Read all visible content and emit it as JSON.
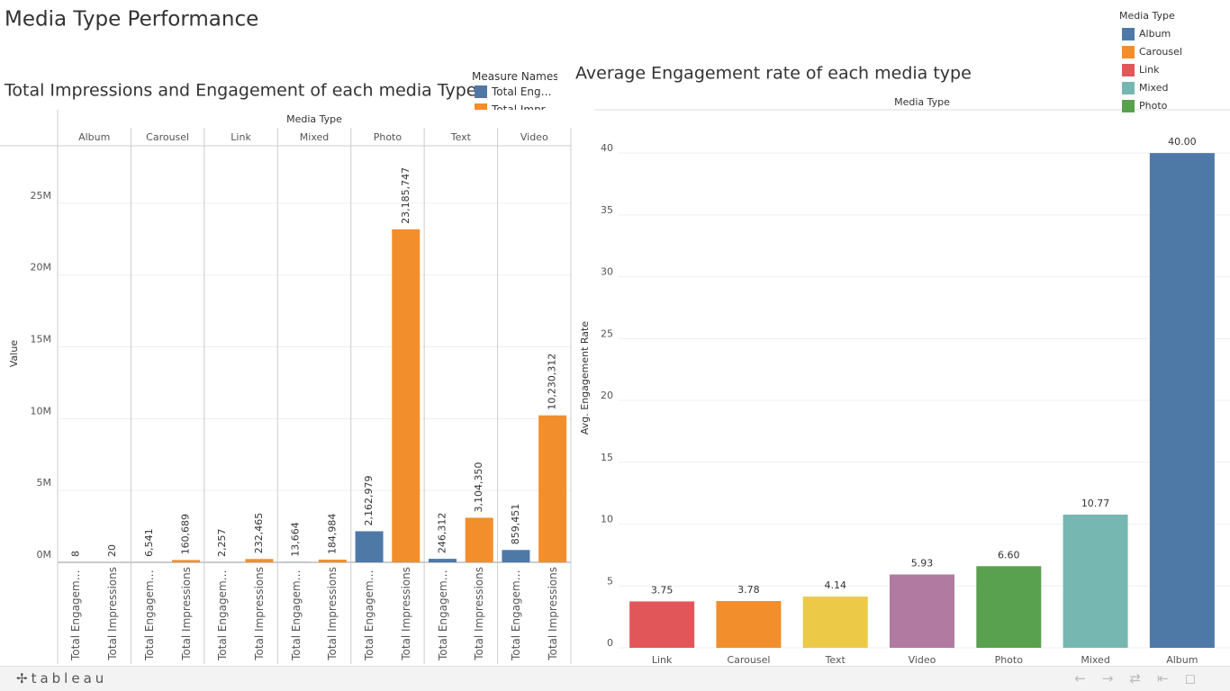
{
  "dashboard": {
    "title": "Media Type Performance"
  },
  "chart_data": [
    {
      "type": "paned_bar",
      "title": "Total Impressions and Engagement of each media Type",
      "column_header": "Media Type",
      "categories": [
        "Album",
        "Carousel",
        "Link",
        "Mixed",
        "Photo",
        "Text",
        "Video"
      ],
      "series": [
        {
          "name": "Total Engagement",
          "color": "#4e79a7",
          "values": [
            8,
            6541,
            2257,
            13664,
            2162979,
            246312,
            859451
          ],
          "value_labels": [
            "8",
            "6,541",
            "2,257",
            "13,664",
            "2,162,979",
            "246,312",
            "859,451"
          ]
        },
        {
          "name": "Total Impressions",
          "color": "#f28e2b",
          "values": [
            20,
            160689,
            232465,
            184984,
            23185747,
            3104350,
            10230312
          ],
          "value_labels": [
            "20",
            "160,689",
            "232,465",
            "184,984",
            "23,185,747",
            "3,104,350",
            "10,230,312"
          ]
        }
      ],
      "ylabel": "Value",
      "ylim": [
        0,
        29000000
      ],
      "yticks": [
        {
          "value": 0,
          "label": "0M"
        },
        {
          "value": 5000000,
          "label": "5M"
        },
        {
          "value": 10000000,
          "label": "10M"
        },
        {
          "value": 15000000,
          "label": "15M"
        },
        {
          "value": 20000000,
          "label": "20M"
        },
        {
          "value": 25000000,
          "label": "25M"
        }
      ],
      "legend": {
        "title": "Measure Names",
        "position": "top-right"
      },
      "grid": true
    },
    {
      "type": "bar",
      "title": "Average Engagement rate of each media type",
      "column_header": "Media Type",
      "categories": [
        "Link",
        "Carousel",
        "Text",
        "Video",
        "Photo",
        "Mixed",
        "Album"
      ],
      "values": [
        3.75,
        3.78,
        4.14,
        5.93,
        6.6,
        10.77,
        40
      ],
      "value_labels": [
        "3.75",
        "3.78",
        "4.14",
        "5.93",
        "6.60",
        "10.77",
        "40.00"
      ],
      "colors": [
        "#e15759",
        "#f28e2b",
        "#edc948",
        "#b07aa1",
        "#59a14f",
        "#76b7b2",
        "#4e79a7"
      ],
      "ylabel": "Avg. Engagement Rate",
      "ylim": [
        0,
        43.5
      ],
      "yticks": [
        0,
        5,
        10,
        15,
        20,
        25,
        30,
        35,
        40
      ],
      "grid": true
    }
  ],
  "media_type_legend": {
    "title": "Media Type",
    "items": [
      {
        "label": "Album",
        "color": "#4e79a7"
      },
      {
        "label": "Carousel",
        "color": "#f28e2b"
      },
      {
        "label": "Link",
        "color": "#e15759"
      },
      {
        "label": "Mixed",
        "color": "#76b7b2"
      },
      {
        "label": "Photo",
        "color": "#59a14f"
      }
    ]
  },
  "footer": {
    "logo": "tableau"
  }
}
